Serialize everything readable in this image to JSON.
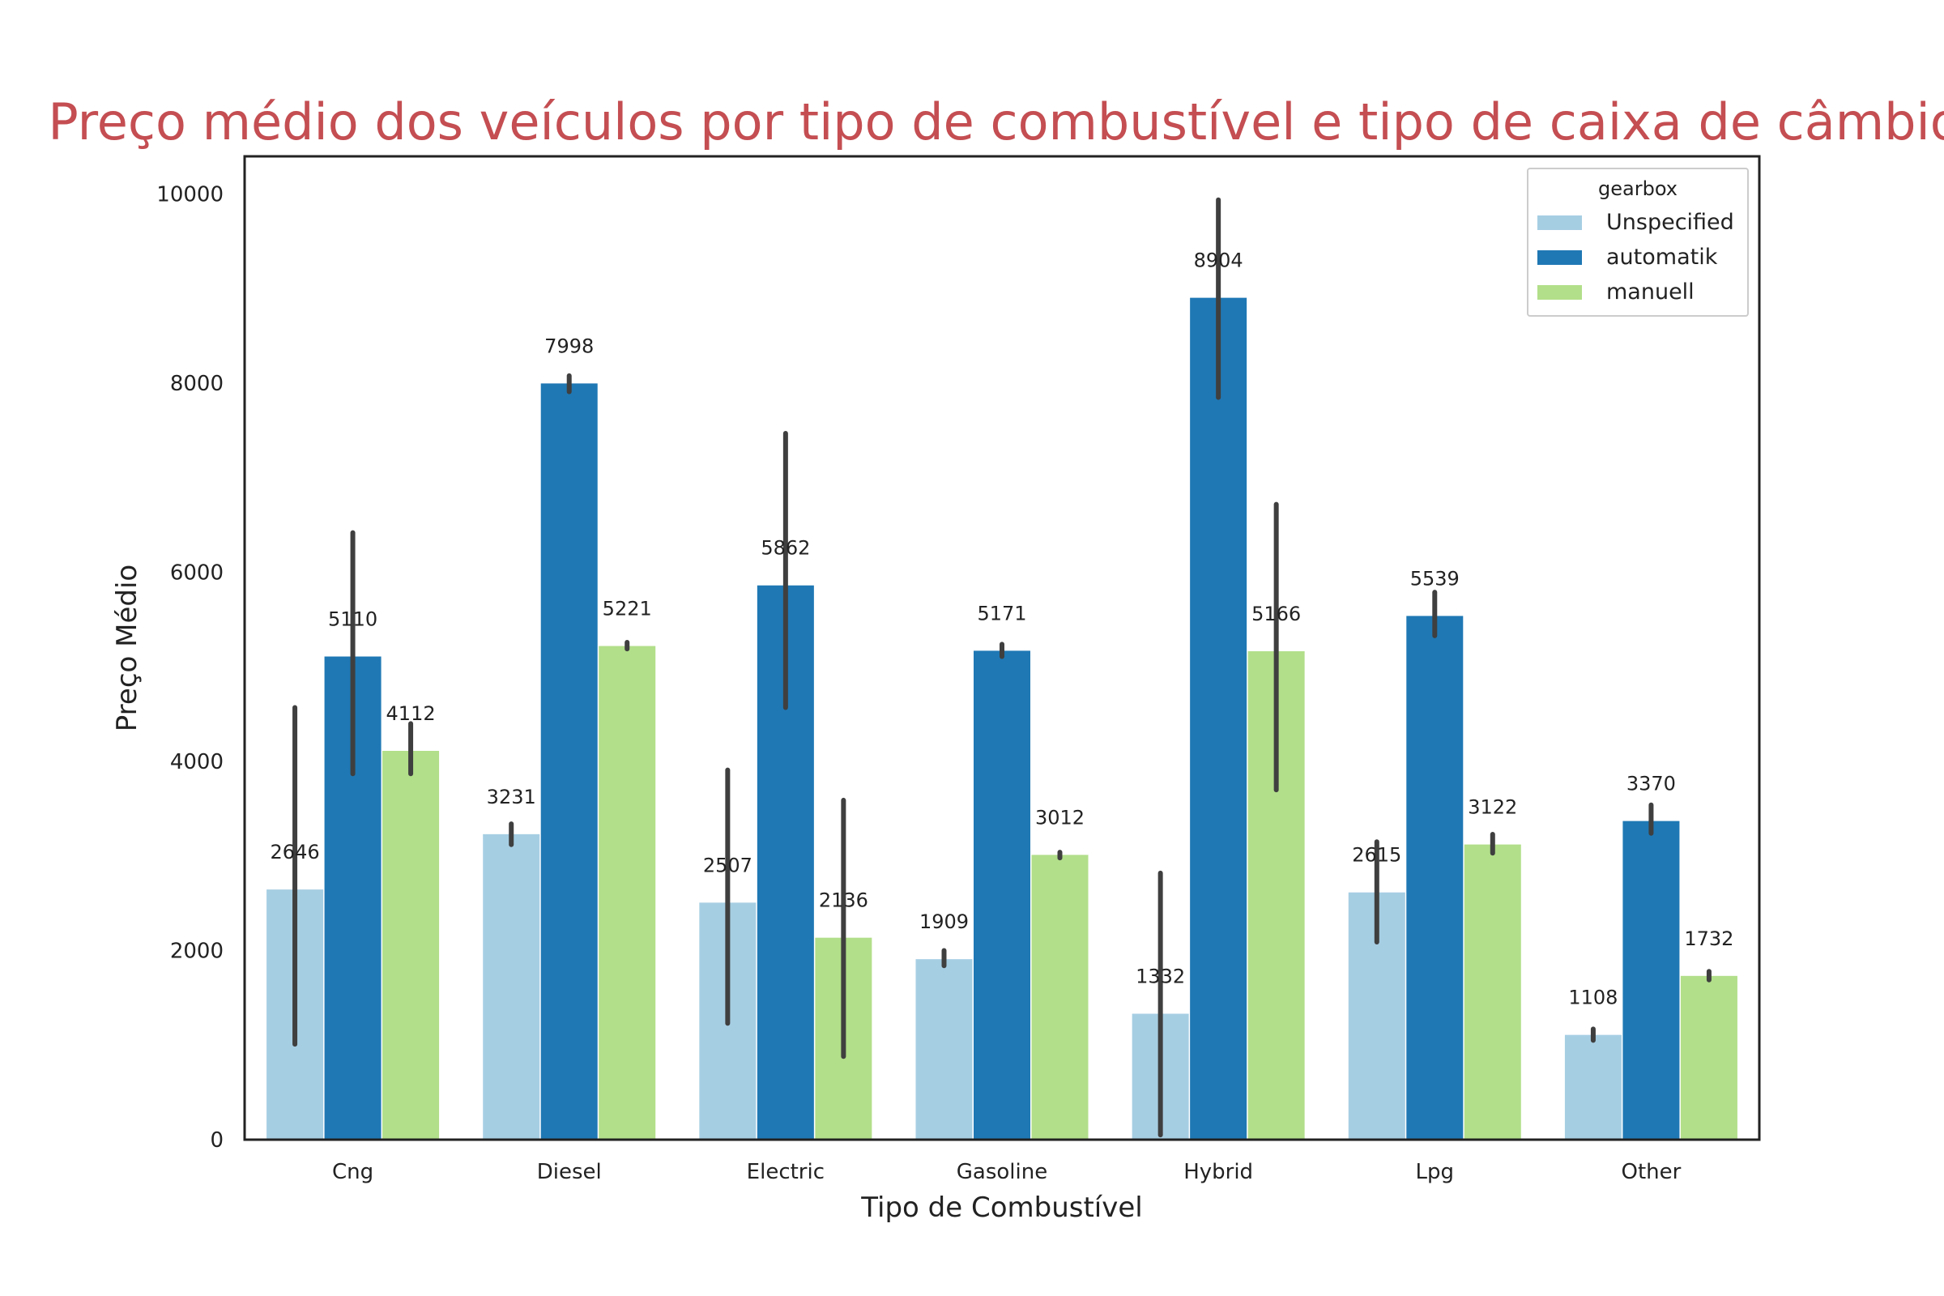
{
  "chart_data": {
    "type": "bar",
    "title": "Preço médio dos veículos por tipo de combustível e tipo de caixa de câmbio",
    "xlabel": "Tipo de Combustível",
    "ylabel": "Preço Médio",
    "ylim": [
      0,
      10400
    ],
    "yticks": [
      0,
      2000,
      4000,
      6000,
      8000,
      10000
    ],
    "grid": false,
    "legend": {
      "title": "gearbox",
      "placement": "top-right"
    },
    "categories": [
      "Cng",
      "Diesel",
      "Electric",
      "Gasoline",
      "Hybrid",
      "Lpg",
      "Other"
    ],
    "series": [
      {
        "name": "Unspecified",
        "color": "#a6cee3",
        "values": [
          2646,
          3231,
          2507,
          1909,
          1332,
          2615,
          1108
        ],
        "ci": [
          [
            1010,
            4570
          ],
          [
            3120,
            3340
          ],
          [
            1230,
            3910
          ],
          [
            1840,
            2000
          ],
          [
            50,
            2820
          ],
          [
            2090,
            3150
          ],
          [
            1050,
            1170
          ]
        ]
      },
      {
        "name": "automatik",
        "color": "#1f78b4",
        "values": [
          5110,
          7998,
          5862,
          5171,
          8904,
          5539,
          3370
        ],
        "ci": [
          [
            3870,
            6420
          ],
          [
            7910,
            8080
          ],
          [
            4570,
            7470
          ],
          [
            5110,
            5240
          ],
          [
            7850,
            9940
          ],
          [
            5330,
            5790
          ],
          [
            3240,
            3540
          ]
        ]
      },
      {
        "name": "manuell",
        "color": "#b2df8a",
        "values": [
          4112,
          5221,
          2136,
          3012,
          5166,
          3122,
          1732
        ],
        "ci": [
          [
            3870,
            4400
          ],
          [
            5190,
            5260
          ],
          [
            880,
            3590
          ],
          [
            2980,
            3040
          ],
          [
            3700,
            6720
          ],
          [
            3030,
            3230
          ],
          [
            1690,
            1780
          ]
        ]
      }
    ]
  }
}
